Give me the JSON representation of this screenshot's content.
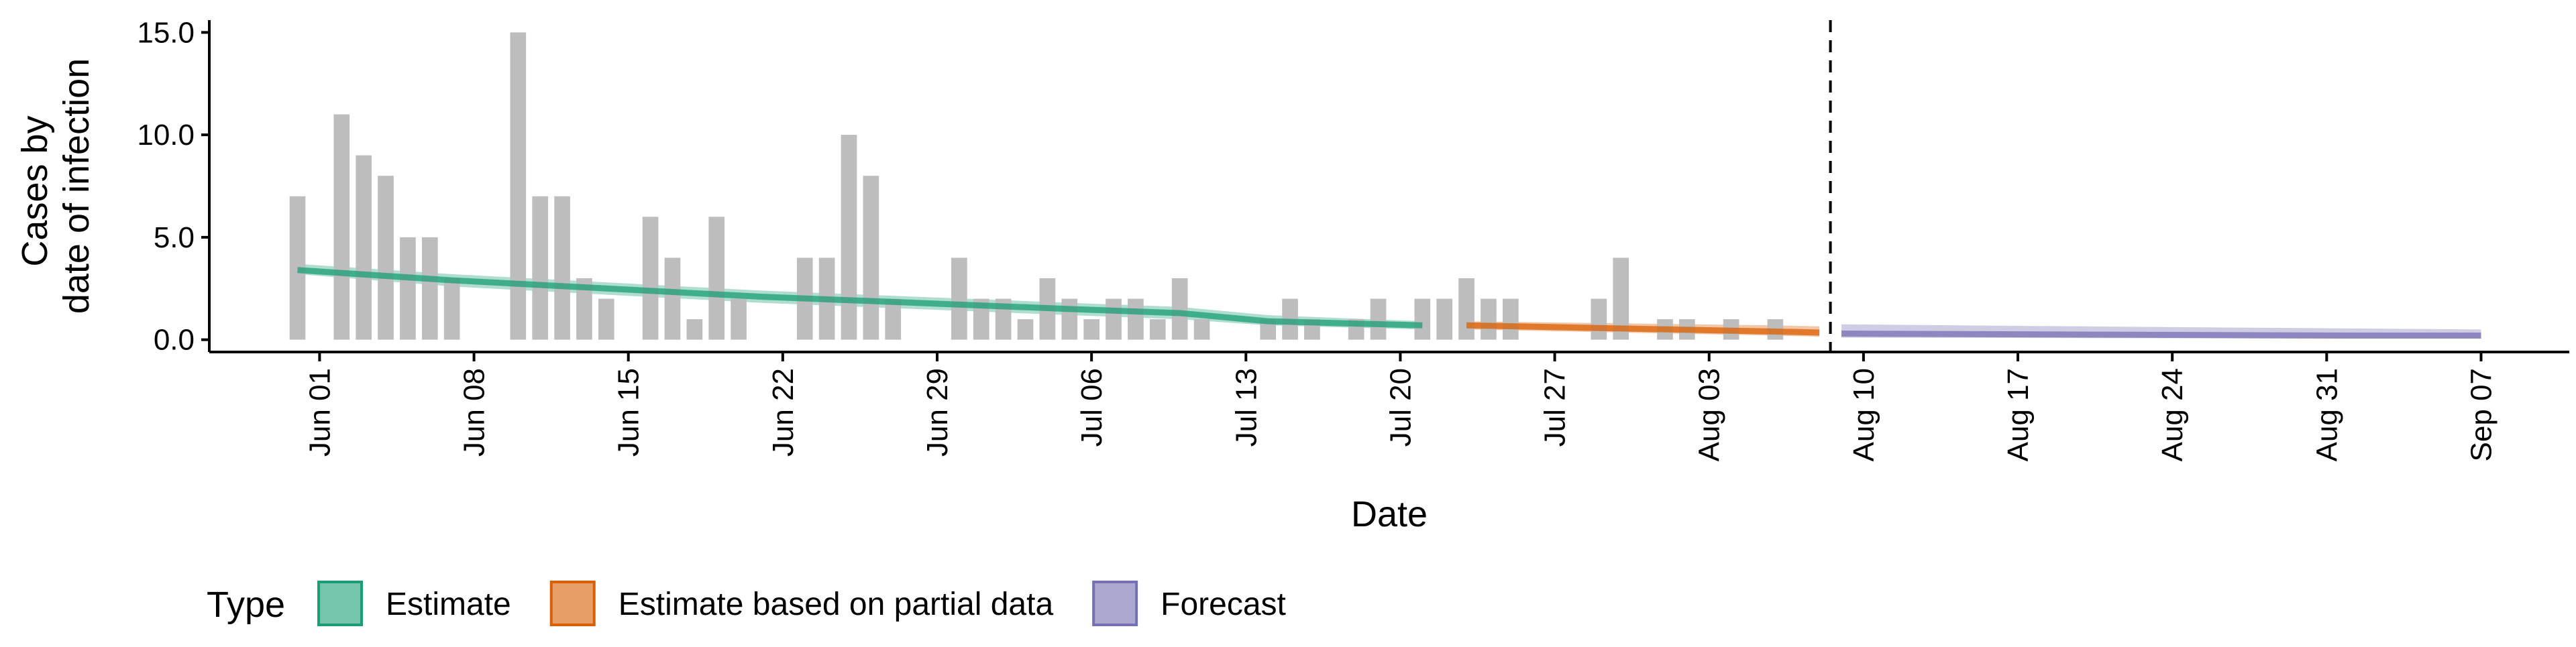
{
  "chart_data": {
    "type": "bar",
    "xlabel": "Date",
    "ylabel_lines": [
      "Cases by",
      "date of infection"
    ],
    "y_ticks": [
      0,
      5,
      10,
      15
    ],
    "y_tick_labels": [
      "0.0",
      "5.0",
      "10.0",
      "15.0"
    ],
    "ylim": [
      -0.6,
      15.6
    ],
    "xlim": [
      "2020-05-27",
      "2020-09-11"
    ],
    "x_ticks": [
      "2020-06-01",
      "2020-06-08",
      "2020-06-15",
      "2020-06-22",
      "2020-06-29",
      "2020-07-06",
      "2020-07-13",
      "2020-07-20",
      "2020-07-27",
      "2020-08-03",
      "2020-08-10",
      "2020-08-17",
      "2020-08-24",
      "2020-08-31",
      "2020-09-07"
    ],
    "x_tick_labels": [
      "Jun 01",
      "Jun 08",
      "Jun 15",
      "Jun 22",
      "Jun 29",
      "Jul 06",
      "Jul 13",
      "Jul 20",
      "Jul 27",
      "Aug 03",
      "Aug 10",
      "Aug 17",
      "Aug 24",
      "Aug 31",
      "Sep 07"
    ],
    "cases": {
      "name": "Cases by date of infection",
      "color": "#bdbdbd",
      "dates": [
        "2020-05-31",
        "2020-06-02",
        "2020-06-03",
        "2020-06-04",
        "2020-06-05",
        "2020-06-06",
        "2020-06-07",
        "2020-06-10",
        "2020-06-11",
        "2020-06-12",
        "2020-06-13",
        "2020-06-14",
        "2020-06-16",
        "2020-06-17",
        "2020-06-18",
        "2020-06-19",
        "2020-06-20",
        "2020-06-23",
        "2020-06-24",
        "2020-06-25",
        "2020-06-26",
        "2020-06-27",
        "2020-06-30",
        "2020-07-01",
        "2020-07-02",
        "2020-07-03",
        "2020-07-04",
        "2020-07-05",
        "2020-07-06",
        "2020-07-07",
        "2020-07-08",
        "2020-07-09",
        "2020-07-10",
        "2020-07-11",
        "2020-07-14",
        "2020-07-15",
        "2020-07-16",
        "2020-07-18",
        "2020-07-19",
        "2020-07-21",
        "2020-07-22",
        "2020-07-23",
        "2020-07-24",
        "2020-07-25",
        "2020-07-29",
        "2020-07-30",
        "2020-08-01",
        "2020-08-02",
        "2020-08-04",
        "2020-08-06"
      ],
      "values": [
        7,
        11,
        9,
        8,
        5,
        5,
        3,
        15,
        7,
        7,
        3,
        2,
        6,
        4,
        1,
        6,
        2,
        4,
        4,
        10,
        8,
        2,
        4,
        2,
        2,
        1,
        3,
        2,
        1,
        2,
        2,
        1,
        3,
        1,
        1,
        2,
        1,
        1,
        2,
        2,
        2,
        3,
        2,
        2,
        2,
        4,
        1,
        1,
        1,
        1
      ]
    },
    "series": [
      {
        "name": "Estimate",
        "color": "#1b9e77",
        "dates": [
          "2020-05-31",
          "2020-06-07",
          "2020-06-14",
          "2020-06-21",
          "2020-06-28",
          "2020-07-05",
          "2020-07-10",
          "2020-07-14",
          "2020-07-21"
        ],
        "median": [
          3.4,
          2.9,
          2.5,
          2.1,
          1.8,
          1.5,
          1.3,
          0.9,
          0.7
        ],
        "lower": [
          3.2,
          2.6,
          2.2,
          1.8,
          1.5,
          1.2,
          1.0,
          0.7,
          0.5
        ],
        "upper": [
          3.7,
          3.2,
          2.8,
          2.4,
          2.1,
          1.8,
          1.6,
          1.2,
          0.9
        ]
      },
      {
        "name": "Estimate based on partial data",
        "color": "#d95f02",
        "dates": [
          "2020-07-23",
          "2020-07-30",
          "2020-08-06",
          "2020-08-08"
        ],
        "median": [
          0.7,
          0.55,
          0.4,
          0.35
        ],
        "lower": [
          0.5,
          0.35,
          0.2,
          0.15
        ],
        "upper": [
          0.9,
          0.8,
          0.7,
          0.65
        ]
      },
      {
        "name": "Forecast",
        "color": "#7570b3",
        "dates": [
          "2020-08-09",
          "2020-08-20",
          "2020-09-01",
          "2020-09-07"
        ],
        "median": [
          0.3,
          0.25,
          0.2,
          0.2
        ],
        "lower": [
          0.1,
          0.08,
          0.05,
          0.05
        ],
        "upper": [
          0.75,
          0.65,
          0.55,
          0.5
        ]
      }
    ],
    "vline_date": "2020-08-08",
    "legend": {
      "title": "Type",
      "position": "bottom-left"
    }
  }
}
